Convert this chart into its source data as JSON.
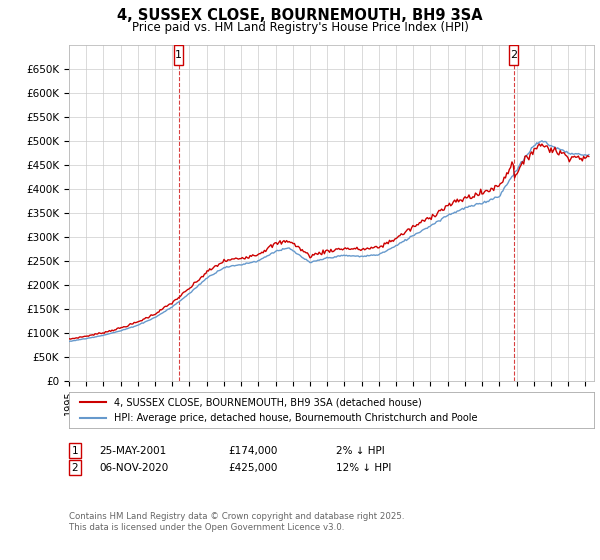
{
  "title": "4, SUSSEX CLOSE, BOURNEMOUTH, BH9 3SA",
  "subtitle": "Price paid vs. HM Land Registry's House Price Index (HPI)",
  "ylim": [
    0,
    700000
  ],
  "yticks": [
    0,
    50000,
    100000,
    150000,
    200000,
    250000,
    300000,
    350000,
    400000,
    450000,
    500000,
    550000,
    600000,
    650000
  ],
  "ytick_labels": [
    "£0",
    "£50K",
    "£100K",
    "£150K",
    "£200K",
    "£250K",
    "£300K",
    "£350K",
    "£400K",
    "£450K",
    "£500K",
    "£550K",
    "£600K",
    "£650K"
  ],
  "sale1_date": "25-MAY-2001",
  "sale1_price": 174000,
  "sale1_hpi_diff": "2% ↓ HPI",
  "sale2_date": "06-NOV-2020",
  "sale2_price": 425000,
  "sale2_hpi_diff": "12% ↓ HPI",
  "legend_label1": "4, SUSSEX CLOSE, BOURNEMOUTH, BH9 3SA (detached house)",
  "legend_label2": "HPI: Average price, detached house, Bournemouth Christchurch and Poole",
  "footer": "Contains HM Land Registry data © Crown copyright and database right 2025.\nThis data is licensed under the Open Government Licence v3.0.",
  "house_color": "#cc0000",
  "hpi_color": "#6699cc",
  "bg_color": "#ffffff",
  "grid_color": "#cccccc",
  "vline_color": "#cc0000",
  "sale1_year": 2001.38,
  "sale2_year": 2020.84,
  "xlim_left": 1995.0,
  "xlim_right": 2025.5
}
